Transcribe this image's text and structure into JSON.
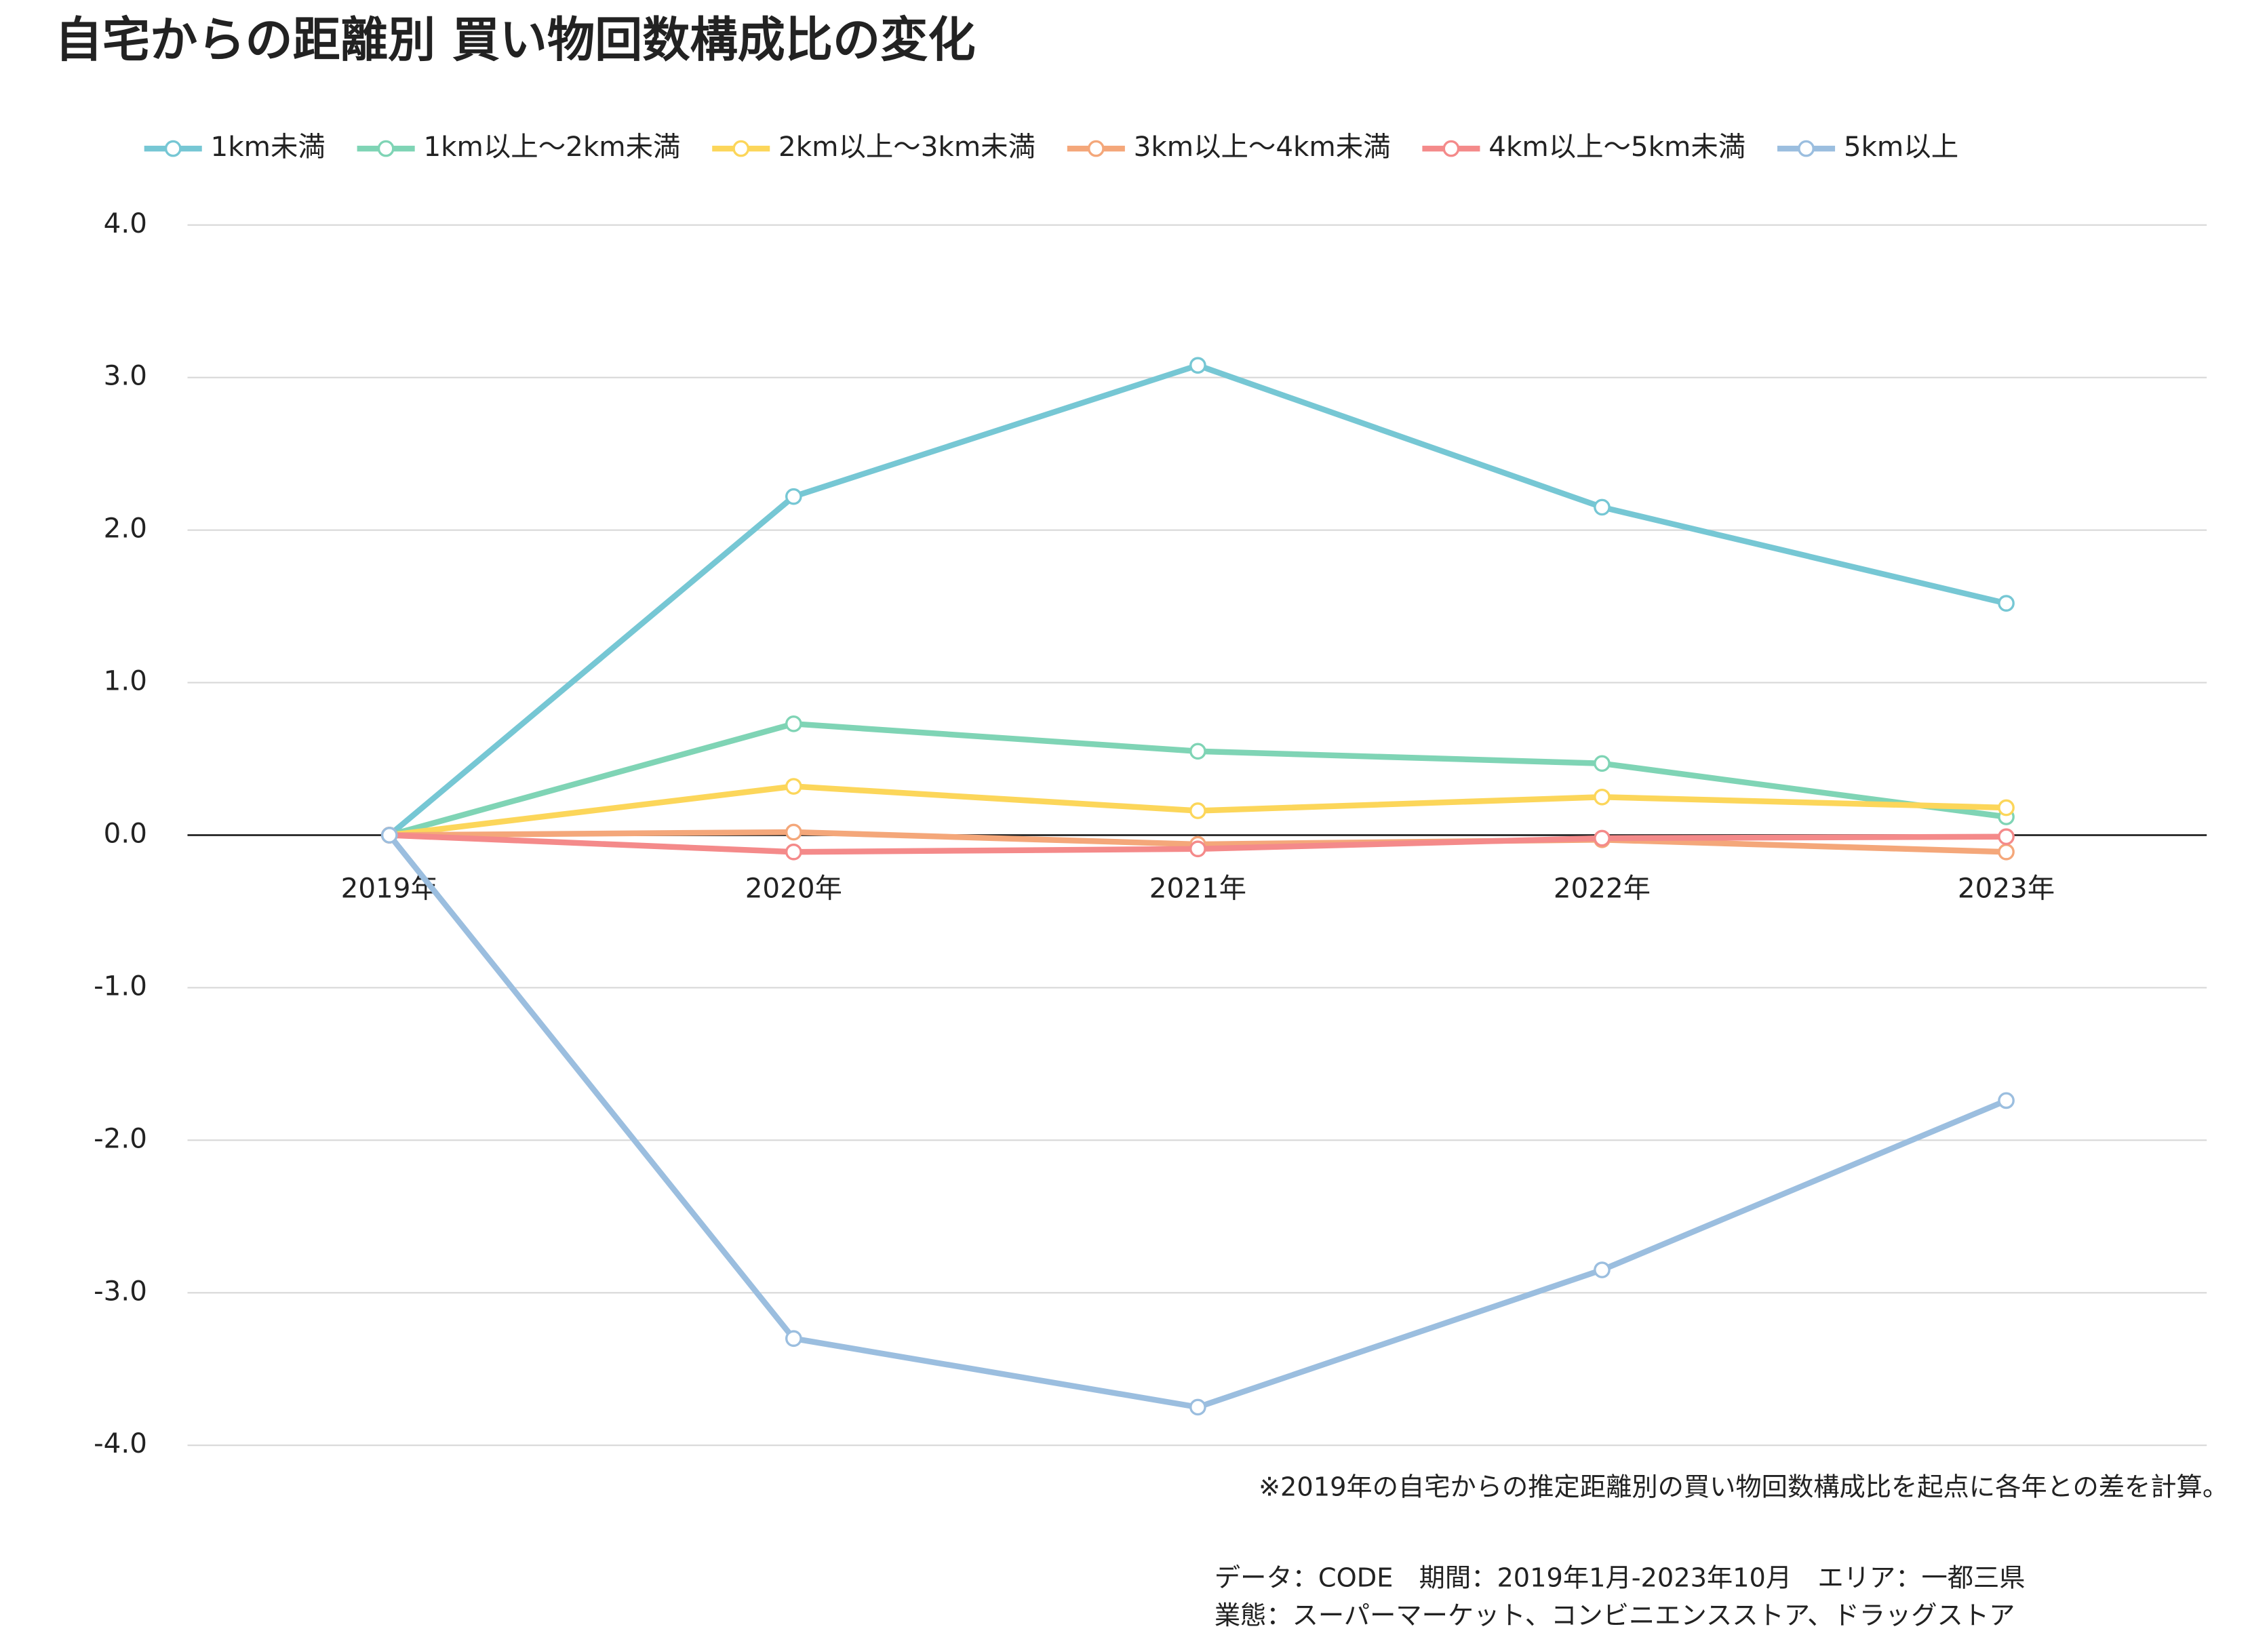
{
  "chart_data": {
    "type": "line",
    "title": "自宅からの距離別 買い物回数構成比の変化",
    "categories": [
      "2019年",
      "2020年",
      "2021年",
      "2022年",
      "2023年"
    ],
    "series": [
      {
        "name": "1km未満",
        "color": "#76c7d4",
        "values": [
          0,
          2.22,
          3.08,
          2.15,
          1.52
        ]
      },
      {
        "name": "1km以上～2km未満",
        "color": "#7fd4b5",
        "values": [
          0,
          0.73,
          0.55,
          0.47,
          0.12
        ]
      },
      {
        "name": "2km以上～3km未満",
        "color": "#fcd65a",
        "values": [
          0,
          0.32,
          0.16,
          0.25,
          0.18
        ]
      },
      {
        "name": "3km以上～4km未満",
        "color": "#f4a77a",
        "values": [
          0,
          0.02,
          -0.06,
          -0.03,
          -0.11
        ]
      },
      {
        "name": "4km以上～5km未満",
        "color": "#f48a8a",
        "values": [
          0,
          -0.11,
          -0.09,
          -0.02,
          -0.01
        ]
      },
      {
        "name": "5km以上",
        "color": "#9bbedf",
        "values": [
          0,
          -3.3,
          -3.75,
          -2.85,
          -1.74
        ]
      }
    ],
    "ylim": [
      -4,
      4
    ],
    "yticks": [
      {
        "value": -4,
        "label": "-4.0"
      },
      {
        "value": -3,
        "label": "-3.0"
      },
      {
        "value": -2,
        "label": "-2.0"
      },
      {
        "value": -1,
        "label": "-1.0"
      },
      {
        "value": 0,
        "label": "0.0"
      },
      {
        "value": 1,
        "label": "1.0"
      },
      {
        "value": 2,
        "label": "2.0"
      },
      {
        "value": 3,
        "label": "3.0"
      },
      {
        "value": 4,
        "label": "4.0"
      }
    ],
    "grid": true,
    "legend": "top",
    "annotations": [
      "※2019年の自宅からの推定距離別の買い物回数構成比を起点に各年との差を計算。",
      "データ：CODE　期間：2019年1月-2023年10月　エリア：一都三県",
      "業態：スーパーマーケット、コンビニエンスストア、ドラッグストア"
    ]
  }
}
